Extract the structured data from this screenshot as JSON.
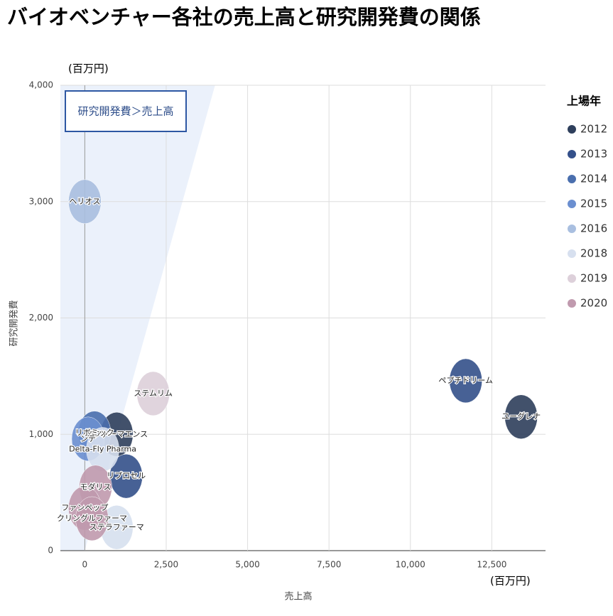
{
  "chart_data": {
    "type": "scatter",
    "title": "バイオベンチャー各社の売上高と研究開発費の関係",
    "x_label": "売上高",
    "y_label": "研究開発費",
    "x_unit": "(百万円)",
    "y_unit": "(百万円)",
    "annotation": "研究開発費＞売上高",
    "legend_title": "上場年",
    "legend_position": "right",
    "grid": true,
    "xlim": [
      -750,
      14150
    ],
    "ylim": [
      0,
      4000
    ],
    "xticks": [
      0,
      {
        "value": 2500,
        "label": "2,500"
      },
      {
        "value": 5000,
        "label": "5,000"
      },
      {
        "value": 7500,
        "label": "7,500"
      },
      {
        "value": 10000,
        "label": "10,000"
      },
      {
        "value": 12500,
        "label": "12,500"
      }
    ],
    "yticks": [
      0,
      {
        "value": 1000,
        "label": "1,000"
      },
      {
        "value": 2000,
        "label": "2,000"
      },
      {
        "value": 3000,
        "label": "3,000"
      },
      {
        "value": 4000,
        "label": "4,000"
      }
    ],
    "series": [
      {
        "name": "2012",
        "color": "#2e3f5c",
        "points": [
          {
            "label": "ユーグレナ",
            "x": 13400,
            "y": 1150
          },
          {
            "label": "スファーマエンス",
            "x": 980,
            "y": 1000
          }
        ]
      },
      {
        "name": "2013",
        "color": "#34508a",
        "points": [
          {
            "label": "ペプチドリーム",
            "x": 11700,
            "y": 1460
          },
          {
            "label": "リプロセル",
            "x": 1270,
            "y": 640
          }
        ]
      },
      {
        "name": "2014",
        "color": "#4a6fae",
        "points": [
          {
            "label": "リボミック",
            "x": 300,
            "y": 1010
          }
        ]
      },
      {
        "name": "2015",
        "color": "#6b8fd0",
        "points": [
          {
            "label": "ンテ",
            "x": 100,
            "y": 960
          }
        ]
      },
      {
        "name": "2016",
        "color": "#a9bfe0",
        "points": [
          {
            "label": "ヘリオス",
            "x": 0,
            "y": 3000
          }
        ]
      },
      {
        "name": "2018",
        "color": "#d7e0ef",
        "points": [
          {
            "label": "Delta-Fly Pharma",
            "x": 550,
            "y": 870
          },
          {
            "label": "ステラファーマ",
            "x": 980,
            "y": 200
          }
        ]
      },
      {
        "name": "2019",
        "color": "#ddd0da",
        "points": [
          {
            "label": "ステムリム",
            "x": 2100,
            "y": 1350
          }
        ]
      },
      {
        "name": "2020",
        "color": "#c09aae",
        "points": [
          {
            "label": "モダリス",
            "x": 330,
            "y": 545
          },
          {
            "label": "ファンペップ",
            "x": 0,
            "y": 365
          },
          {
            "label": "クリングルファーマ",
            "x": 220,
            "y": 275
          }
        ]
      }
    ]
  }
}
